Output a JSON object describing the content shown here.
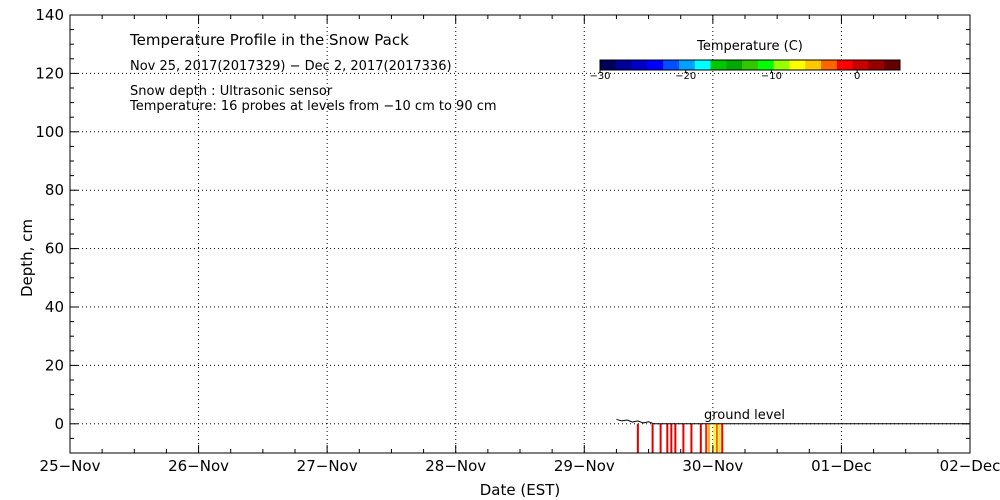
{
  "chart_data": {
    "type": "heatmap",
    "title": "Temperature Profile in the Snow Pack",
    "subtitle": "Nov 25, 2017(2017329) − Dec  2, 2017(2017336)",
    "annotations": [
      "Snow depth : Ultrasonic sensor",
      "Temperature: 16 probes at levels from −10 cm to 90 cm"
    ],
    "ground_label": "ground level",
    "xlabel": "Date (EST)",
    "ylabel": "Depth, cm",
    "x_ticks": [
      "25−Nov",
      "26−Nov",
      "27−Nov",
      "28−Nov",
      "29−Nov",
      "30−Nov",
      "01−Dec",
      "02−Dec"
    ],
    "xlim": [
      "2017-11-25",
      "2017-12-02"
    ],
    "y_ticks": [
      "140",
      "120",
      "100",
      "80",
      "60",
      "40",
      "20",
      "0"
    ],
    "ylim": [
      -10,
      140
    ],
    "grid": true,
    "colorbar": {
      "title": "Temperature (C)",
      "tick_labels": [
        "−30",
        "−20",
        "−10",
        "0"
      ],
      "tick_values": [
        -30,
        -20,
        -10,
        0
      ],
      "range": [
        -30,
        5
      ],
      "colors": [
        "#00005a",
        "#000096",
        "#0000c8",
        "#0000ff",
        "#0050ff",
        "#00a0ff",
        "#00ffff",
        "#00c800",
        "#00aa00",
        "#32c800",
        "#00ff00",
        "#96ff00",
        "#ffff00",
        "#ffc800",
        "#ff6400",
        "#ff0000",
        "#c80000",
        "#960000",
        "#640000"
      ]
    },
    "snow_depth_trace": {
      "x": [
        "2017-11-29 06:00",
        "2017-11-29 07:00",
        "2017-11-29 08:00",
        "2017-11-29 09:00",
        "2017-11-29 10:00",
        "2017-11-29 11:00",
        "2017-11-29 12:00",
        "2017-11-29 13:00"
      ],
      "depth_cm": [
        1.5,
        1.0,
        1.3,
        0.6,
        1.0,
        0.3,
        0.7,
        0.0
      ]
    },
    "temperature_columns": [
      {
        "x": "2017-11-29 10:00",
        "top_cm": 0,
        "color": "#e00000"
      },
      {
        "x": "2017-11-29 12:45",
        "top_cm": 0,
        "color": "#e00000"
      },
      {
        "x": "2017-11-29 14:15",
        "top_cm": 0,
        "color": "#e00000"
      },
      {
        "x": "2017-11-29 15:30",
        "top_cm": 0,
        "color": "#e00000"
      },
      {
        "x": "2017-11-29 16:15",
        "top_cm": 0,
        "color": "#e00000"
      },
      {
        "x": "2017-11-29 17:00",
        "top_cm": 0,
        "color": "#e00000"
      },
      {
        "x": "2017-11-29 18:30",
        "top_cm": 0,
        "color": "#e00000"
      },
      {
        "x": "2017-11-29 20:00",
        "top_cm": 0,
        "color": "#e00000"
      },
      {
        "x": "2017-11-29 21:45",
        "top_cm": 0,
        "color": "#e00000"
      },
      {
        "x": "2017-11-29 22:45",
        "top_cm": 0,
        "color": "#ff2000"
      },
      {
        "x": "2017-11-29 23:15",
        "top_cm": 0,
        "color": "#ffb000"
      },
      {
        "x": "2017-11-30 00:15",
        "top_cm": 0,
        "color": "#ffff00"
      },
      {
        "x": "2017-11-30 00:45",
        "top_cm": 0,
        "color": "#ff6000"
      },
      {
        "x": "2017-11-30 01:15",
        "top_cm": 0,
        "color": "#ffe000"
      },
      {
        "x": "2017-11-30 01:45",
        "top_cm": 0,
        "color": "#ff0000"
      }
    ],
    "ground_line_start": "2017-11-29 13:00"
  }
}
